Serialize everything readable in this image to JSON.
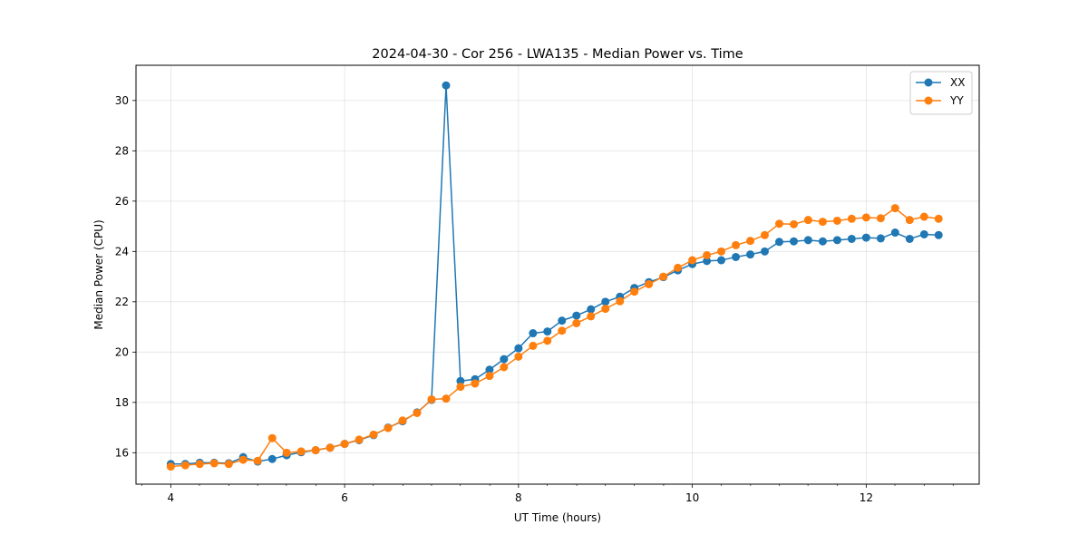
{
  "chart_data": {
    "type": "line",
    "title": "2024-04-30 - Cor 256 - LWA135 - Median Power vs. Time",
    "xlabel": "UT Time (hours)",
    "ylabel": "Median Power (CPU)",
    "xlim": [
      3.6,
      13.3
    ],
    "ylim": [
      14.75,
      31.4
    ],
    "xticks": [
      4,
      6,
      8,
      10,
      12
    ],
    "xticklabels": [
      "4",
      "6",
      "8",
      "10",
      "12"
    ],
    "xminorticks": [
      3.67,
      4.33,
      4.67,
      5,
      5.33,
      5.67,
      6.33,
      6.67,
      7,
      7.33,
      7.67,
      8.33,
      8.67,
      9,
      9.33,
      9.67,
      10.33,
      10.67,
      11,
      11.33,
      11.67,
      12.33,
      12.67,
      13
    ],
    "yticks": [
      16,
      18,
      20,
      22,
      24,
      26,
      28,
      30
    ],
    "yticklabels": [
      "16",
      "18",
      "20",
      "22",
      "24",
      "26",
      "28",
      "30"
    ],
    "grid": true,
    "legend_position": "top-right",
    "x": [
      4.0,
      4.167,
      4.333,
      4.5,
      4.667,
      4.833,
      5.0,
      5.167,
      5.333,
      5.5,
      5.667,
      5.833,
      6.0,
      6.167,
      6.333,
      6.5,
      6.667,
      6.833,
      7.0,
      7.167,
      7.333,
      7.5,
      7.667,
      7.833,
      8.0,
      8.167,
      8.333,
      8.5,
      8.667,
      8.833,
      9.0,
      9.167,
      9.333,
      9.5,
      9.667,
      9.833,
      10.0,
      10.167,
      10.333,
      10.5,
      10.667,
      10.833,
      11.0,
      11.167,
      11.333,
      11.5,
      11.667,
      11.833,
      12.0,
      12.167,
      12.333,
      12.5,
      12.667,
      12.833
    ],
    "series": [
      {
        "name": "XX",
        "color": "#1f77b4",
        "values": [
          15.55,
          15.55,
          15.6,
          15.6,
          15.58,
          15.82,
          15.65,
          15.75,
          15.9,
          16.02,
          16.1,
          16.2,
          16.35,
          16.5,
          16.7,
          17.0,
          17.25,
          17.6,
          18.1,
          30.6,
          18.85,
          18.92,
          19.3,
          19.72,
          20.15,
          20.75,
          20.82,
          21.25,
          21.45,
          21.7,
          22.0,
          22.2,
          22.55,
          22.78,
          22.98,
          23.25,
          23.5,
          23.62,
          23.65,
          23.78,
          23.88,
          24.0,
          24.38,
          24.4,
          24.45,
          24.4,
          24.45,
          24.5,
          24.55,
          24.52,
          24.75,
          24.5,
          24.68,
          24.65
        ]
      },
      {
        "name": "YY",
        "color": "#ff7f0e",
        "values": [
          15.45,
          15.5,
          15.55,
          15.58,
          15.55,
          15.72,
          15.68,
          16.58,
          16.0,
          16.05,
          16.1,
          16.2,
          16.35,
          16.52,
          16.72,
          16.98,
          17.28,
          17.58,
          18.12,
          18.15,
          18.62,
          18.75,
          19.05,
          19.4,
          19.82,
          20.25,
          20.45,
          20.85,
          21.15,
          21.42,
          21.72,
          22.02,
          22.4,
          22.7,
          23.0,
          23.35,
          23.65,
          23.85,
          24.0,
          24.25,
          24.42,
          24.65,
          25.1,
          25.08,
          25.25,
          25.18,
          25.22,
          25.3,
          25.35,
          25.32,
          25.72,
          25.25,
          25.38,
          25.3
        ]
      }
    ]
  }
}
